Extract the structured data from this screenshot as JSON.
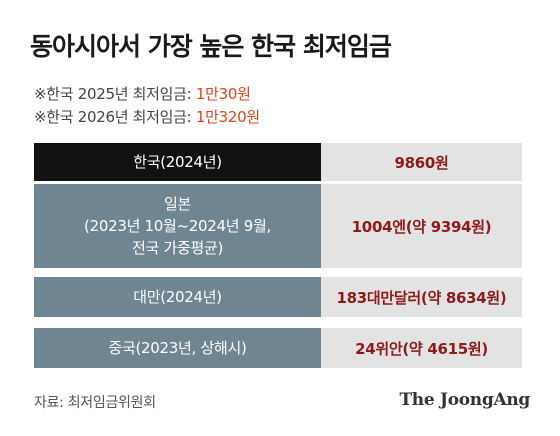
{
  "title": "동아시아서 가장 높은 한국 최저임금",
  "notes": [
    {
      "prefix": "※한국 2025년 최저임금: ",
      "value": "1만30원"
    },
    {
      "prefix": "※한국 2026년 최저임금: ",
      "value": "1만320원"
    }
  ],
  "chart_data": {
    "type": "table",
    "rows": [
      {
        "label_lines": [
          "한국(2024년)"
        ],
        "value": "9860원",
        "highlight": true
      },
      {
        "label_lines": [
          "일본",
          "(2023년 10월~2024년 9월,",
          "전국 가중평균)"
        ],
        "value": "1004엔(약 9394원)",
        "highlight": false
      },
      {
        "label_lines": [
          "대만(2024년)"
        ],
        "value": "183대만달러(약 8634원)",
        "highlight": false
      },
      {
        "label_lines": [
          "중국(2023년, 상해시)"
        ],
        "value": "24위안(약 4615원)",
        "highlight": false
      }
    ]
  },
  "source": "자료: 최저임금위원회",
  "brand": "The JoongAng",
  "colors": {
    "label_bg": "#6f8591",
    "highlight_bg": "#111111",
    "value_bg": "#e3e3e3",
    "value_text": "#8e1a1c",
    "note_accent": "#e0421b"
  }
}
